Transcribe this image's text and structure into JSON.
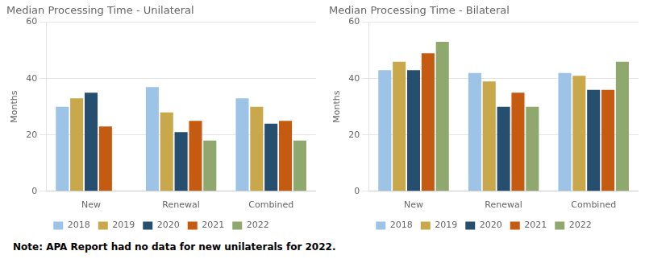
{
  "chart_data": [
    {
      "type": "bar",
      "title": "Median Processing Time - Unilateral",
      "categories": [
        "New",
        "Renewal",
        "Combined"
      ],
      "series": [
        {
          "name": "2018",
          "color": "#9DC3E6",
          "values": [
            30,
            37,
            33
          ]
        },
        {
          "name": "2019",
          "color": "#C9A84C",
          "values": [
            33,
            28,
            30
          ]
        },
        {
          "name": "2020",
          "color": "#264E6E",
          "values": [
            35,
            21,
            24
          ]
        },
        {
          "name": "2021",
          "color": "#C55A11",
          "values": [
            23,
            25,
            25
          ]
        },
        {
          "name": "2022",
          "color": "#8FA86E",
          "values": [
            null,
            18,
            18
          ]
        }
      ],
      "ylabel": "Months",
      "ylim": [
        0,
        60
      ],
      "yticks": [
        0,
        20,
        40,
        60
      ],
      "grid": true,
      "legend": "bottom",
      "annotation": "Note: APA Report had no data for new unilaterals for 2022."
    },
    {
      "type": "bar",
      "title": "Median Processing Time - Bilateral",
      "categories": [
        "New",
        "Renewal",
        "Combined"
      ],
      "series": [
        {
          "name": "2018",
          "color": "#9DC3E6",
          "values": [
            43,
            42,
            42
          ]
        },
        {
          "name": "2019",
          "color": "#C9A84C",
          "values": [
            46,
            39,
            41
          ]
        },
        {
          "name": "2020",
          "color": "#264E6E",
          "values": [
            43,
            30,
            36
          ]
        },
        {
          "name": "2021",
          "color": "#C55A11",
          "values": [
            49,
            35,
            36
          ]
        },
        {
          "name": "2022",
          "color": "#8FA86E",
          "values": [
            53,
            30,
            46
          ]
        }
      ],
      "ylabel": "Months",
      "ylim": [
        0,
        60
      ],
      "yticks": [
        0,
        20,
        40,
        60
      ],
      "grid": true,
      "legend": "bottom"
    }
  ]
}
